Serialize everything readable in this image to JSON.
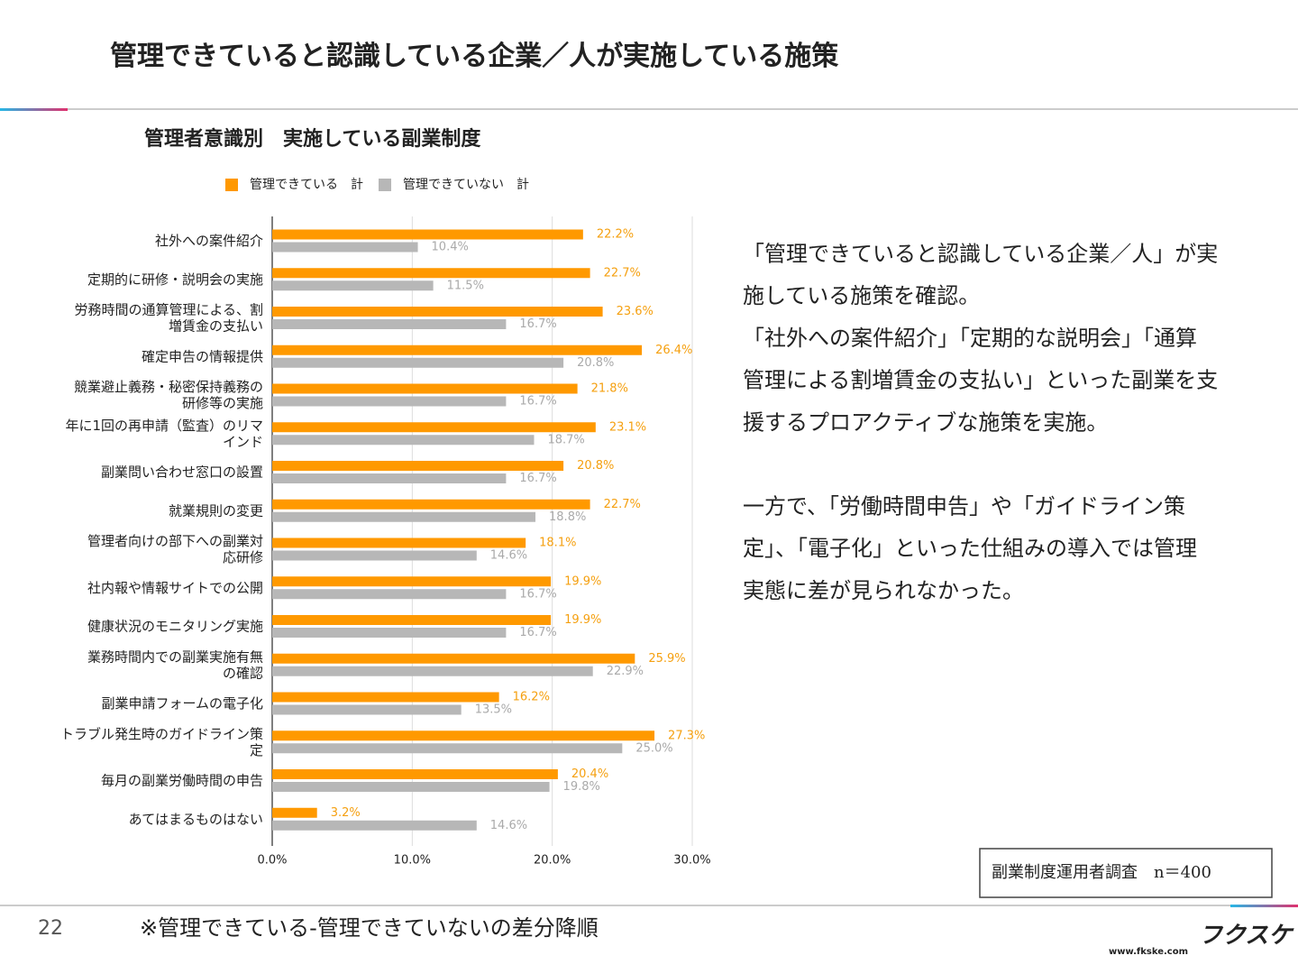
{
  "title": "管理できていると認識している企業／人が実施している施策",
  "chart_data": {
    "type": "barh",
    "title": "管理者意識別　実施している副業制度",
    "categories": [
      "社外への案件紹介",
      "定期的に研修・説明会の実施",
      "労務時間の通算管理による、割\n増賃金の支払い",
      "確定申告の情報提供",
      "競業避止義務・秘密保持義務の\n研修等の実施",
      "年に1回の再申請（監査）のリマ\nインド",
      "副業問い合わせ窓口の設置",
      "就業規則の変更",
      "管理者向けの部下への副業対\n応研修",
      "社内報や情報サイトでの公開",
      "健康状況のモニタリング実施",
      "業務時間内での副業実施有無\nの確認",
      "副業申請フォームの電子化",
      "トラブル発生時のガイドライン策\n定",
      "毎月の副業労働時間の申告",
      "あてはまるものはない"
    ],
    "series": [
      {
        "name": "管理できている　計",
        "color": "#ff9900",
        "label_color": "#f5a010",
        "values": [
          22.2,
          22.7,
          23.6,
          26.4,
          21.8,
          23.1,
          20.8,
          22.7,
          18.1,
          19.9,
          19.9,
          25.9,
          16.2,
          27.3,
          20.4,
          3.2
        ],
        "value_labels": [
          "22.2%",
          "22.7%",
          "23.6%",
          "26.4%",
          "21.8%",
          "23.1%",
          "20.8%",
          "22.7%",
          "18.1%",
          "19.9%",
          "19.9%",
          "25.9%",
          "16.2%",
          "27.3%",
          "20.4%",
          "3.2%"
        ]
      },
      {
        "name": "管理できていない　計",
        "color": "#b7b7b7",
        "label_color": "#aaaaaa",
        "values": [
          10.4,
          11.5,
          16.7,
          20.8,
          16.7,
          18.7,
          16.7,
          18.8,
          14.6,
          16.7,
          16.7,
          22.9,
          13.5,
          25.0,
          19.8,
          14.6
        ],
        "value_labels": [
          "10.4%",
          "11.5%",
          "16.7%",
          "20.8%",
          "16.7%",
          "18.7%",
          "16.7%",
          "18.8%",
          "14.6%",
          "16.7%",
          "16.7%",
          "22.9%",
          "13.5%",
          "25.0%",
          "19.8%",
          "14.6%"
        ]
      }
    ],
    "xlim": [
      0,
      30
    ],
    "xticks": [
      {
        "value": 0,
        "label": "0.0%"
      },
      {
        "value": 10,
        "label": "10.0%"
      },
      {
        "value": 20,
        "label": "20.0%"
      },
      {
        "value": 30,
        "label": "30.0%"
      }
    ],
    "grid": true,
    "legend": "top"
  },
  "body": [
    [
      "「管理できていると認識している企業／人」が実",
      "施している施策を確認。",
      "「社外への案件紹介」「定期的な説明会」「通算",
      "管理による割増賃金の支払い」といった副業を支",
      "援するプロアクティブな施策を実施。"
    ],
    [
      "一方で、「労働時間申告」や「ガイドライン策",
      "定」、「電子化」といった仕組みの導入では管理",
      "実態に差が見られなかった。"
    ]
  ],
  "source_note": "副業制度運用者調査　n＝400",
  "page_number": "22",
  "footnote": "※管理できている-管理できていないの差分降順",
  "logo": "フクスケ",
  "url": "www.fkske.com"
}
